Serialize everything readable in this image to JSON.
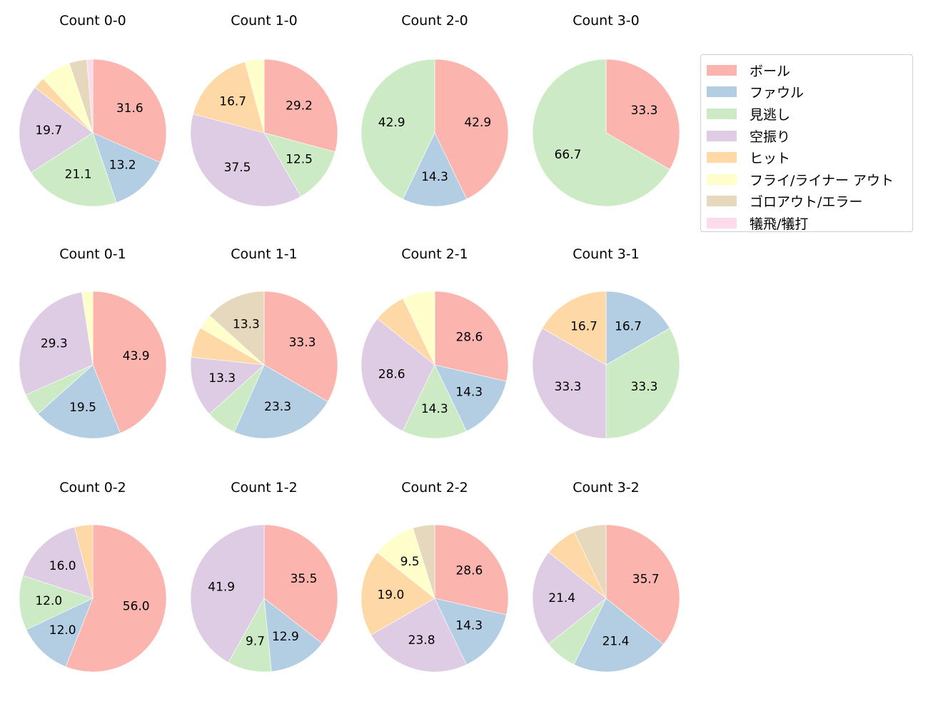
{
  "chart_data": {
    "type": "pie",
    "layout": {
      "rows": 3,
      "cols": 4,
      "start_angle": 90,
      "direction": "clockwise",
      "legend_position": "upper right"
    },
    "categories": [
      "ボール",
      "ファウル",
      "見逃し",
      "空振り",
      "ヒット",
      "フライ/ライナー アウト",
      "ゴロアウト/エラー",
      "犠飛/犠打"
    ],
    "colors": [
      "#fbb4ae",
      "#b3cde3",
      "#ccebc5",
      "#decbe4",
      "#fed9a6",
      "#ffffcc",
      "#e5d8bd",
      "#fddaec"
    ],
    "charts": [
      {
        "title": "Count 0-0",
        "values": [
          31.6,
          13.2,
          21.1,
          19.7,
          2.6,
          6.6,
          3.9,
          1.3
        ]
      },
      {
        "title": "Count 1-0",
        "values": [
          29.2,
          0,
          12.5,
          37.5,
          16.7,
          4.2,
          0,
          0
        ]
      },
      {
        "title": "Count 2-0",
        "values": [
          42.9,
          14.3,
          42.9,
          0,
          0,
          0,
          0,
          0
        ]
      },
      {
        "title": "Count 3-0",
        "values": [
          33.3,
          0,
          66.7,
          0,
          0,
          0,
          0,
          0
        ]
      },
      {
        "title": "Count 0-1",
        "values": [
          43.9,
          19.5,
          4.9,
          29.3,
          0,
          2.4,
          0,
          0
        ]
      },
      {
        "title": "Count 1-1",
        "values": [
          33.3,
          23.3,
          6.7,
          13.3,
          6.7,
          3.3,
          13.3,
          0
        ]
      },
      {
        "title": "Count 2-1",
        "values": [
          28.6,
          14.3,
          14.3,
          28.6,
          7.1,
          7.1,
          0,
          0
        ]
      },
      {
        "title": "Count 3-1",
        "values": [
          0,
          16.7,
          33.3,
          33.3,
          16.7,
          0,
          0,
          0
        ]
      },
      {
        "title": "Count 0-2",
        "values": [
          56.0,
          12.0,
          12.0,
          16.0,
          4.0,
          0,
          0,
          0
        ]
      },
      {
        "title": "Count 1-2",
        "values": [
          35.5,
          12.9,
          9.7,
          41.9,
          0,
          0,
          0,
          0
        ]
      },
      {
        "title": "Count 2-2",
        "values": [
          28.6,
          14.3,
          0,
          23.8,
          19.0,
          9.5,
          4.8,
          0
        ]
      },
      {
        "title": "Count 3-2",
        "values": [
          35.7,
          21.4,
          7.1,
          21.4,
          7.1,
          0,
          7.1,
          0
        ]
      }
    ],
    "label_threshold": 9.0
  },
  "legend": {
    "items": [
      {
        "label": "ボール",
        "color": "#fbb4ae"
      },
      {
        "label": "ファウル",
        "color": "#b3cde3"
      },
      {
        "label": "見逃し",
        "color": "#ccebc5"
      },
      {
        "label": "空振り",
        "color": "#decbe4"
      },
      {
        "label": "ヒット",
        "color": "#fed9a6"
      },
      {
        "label": "フライ/ライナー アウト",
        "color": "#ffffcc"
      },
      {
        "label": "ゴロアウト/エラー",
        "color": "#e5d8bd"
      },
      {
        "label": "犠飛/犠打",
        "color": "#fddaec"
      }
    ]
  }
}
